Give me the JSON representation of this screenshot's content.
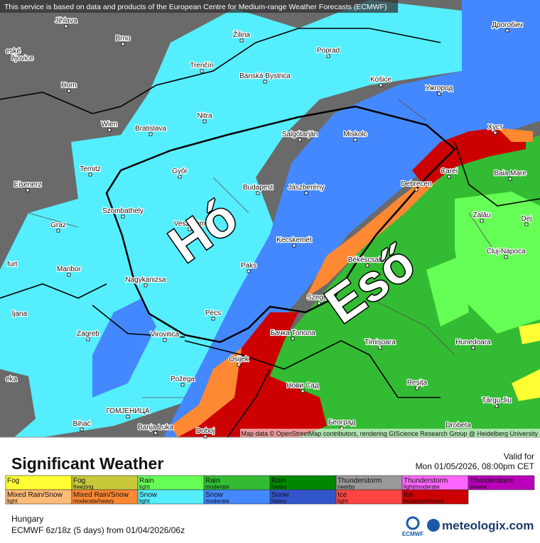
{
  "header": {
    "notice": "This service is based on data and products of the European Centre for Medium-range Weather Forecasts (ECMWF)",
    "attribution": "Map data © OpenStreetMap contributors, rendering GIScience Research Group @ Heidelberg University"
  },
  "map": {
    "labels": [
      "Jihlava",
      "Brno",
      "Žilina",
      "Poprad",
      "Дрогобич",
      "eské",
      "ějovice",
      "Horn",
      "Trenčín",
      "Banská Bystrica",
      "Košice",
      "Ужгород",
      "Wien",
      "Bratislava",
      "Nitra",
      "Salgótarján",
      "Miskolc",
      "Хуст",
      "Ternitz",
      "Győr",
      "Carei",
      "Baia Mare",
      "Eisenerz",
      "Budapest",
      "Jászberény",
      "Debrecen",
      "Szombathely",
      "Zalău",
      "Graz",
      "Veszprém",
      "Dej",
      "Kecskemét",
      "Cluj-Napoca",
      "furt",
      "Maribor",
      "Paks",
      "Békéscsaba",
      "Nagykanizsa",
      "ljana",
      "Pécs",
      "Szeged",
      "Zagreb",
      "Virovitica",
      "Бачка Топола",
      "Timișoara",
      "Hunedoara",
      "Osijek",
      "Нови Сад",
      "Reșița",
      "Požega",
      "eka",
      "Târgu Jiu",
      "ГОМЈЕНИЦА",
      "Bihać",
      "Banja Luka",
      "Doboj",
      "Београд",
      "Drobeta"
    ],
    "overlay_labels": [
      "Hó",
      "Eső"
    ]
  },
  "legend": {
    "title": "Significant Weather",
    "items": [
      {
        "label": "Fog",
        "color": "#ffff33"
      },
      {
        "label": "Fog",
        "sublabel": "freezing",
        "color": "#c8c83a"
      },
      {
        "label": "Rain",
        "sublabel": "light",
        "color": "#66ff55"
      },
      {
        "label": "Rain",
        "sublabel": "moderate",
        "color": "#33bb33"
      },
      {
        "label": "Rain",
        "sublabel": "heavy",
        "color": "#008800"
      },
      {
        "label": "Thunderstorm",
        "sublabel": "nearby",
        "color": "#999999"
      },
      {
        "label": "Thunderstorm",
        "sublabel": "light/moderate",
        "color": "#ff66ff"
      },
      {
        "label": "Thunderstorm",
        "sublabel": "severe",
        "color": "#bb00bb"
      },
      {
        "label": "Mixed Rain/Snow",
        "sublabel": "light",
        "color": "#ffbb77"
      },
      {
        "label": "Mixed Rain/Snow",
        "sublabel": "moderate/heavy",
        "color": "#ff8833"
      },
      {
        "label": "Snow",
        "sublabel": "light",
        "color": "#55eeff"
      },
      {
        "label": "Snow",
        "sublabel": "moderate",
        "color": "#4488ff"
      },
      {
        "label": "Snow",
        "sublabel": "heavy",
        "color": "#3355cc"
      },
      {
        "label": "Ice",
        "sublabel": "light",
        "color": "#ff4444"
      },
      {
        "label": "Ice",
        "sublabel": "moderate/heavy",
        "color": "#cc0000"
      }
    ]
  },
  "footer": {
    "valid_label": "Valid for",
    "valid_time": "Mon 01/05/2026, 08:00pm CET",
    "region": "Hungary",
    "model": "ECMWF 6z/18z (5 days) from 01/04/2026/06z",
    "ecmwf": "ECMWF",
    "brand": "meteologix.com"
  }
}
